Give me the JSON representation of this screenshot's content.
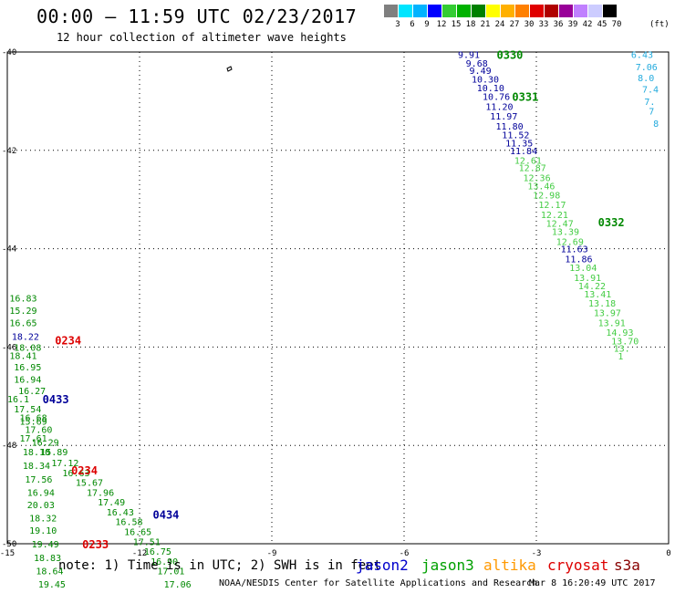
{
  "header": {
    "title": "00:00 – 11:59 UTC 02/23/2017",
    "subtitle": "12 hour collection of altimeter wave heights"
  },
  "legend": {
    "swatches": [
      "#7f7f7f",
      "#00e5ff",
      "#00b3ff",
      "#0000ff",
      "#33cc33",
      "#00b200",
      "#008000",
      "#ffff00",
      "#ffb000",
      "#ff7f00",
      "#e00000",
      "#b00000",
      "#990099",
      "#c080ff",
      "#ccccff",
      "#000000"
    ],
    "labels": [
      "3",
      "6",
      "9",
      "12",
      "15",
      "18",
      "21",
      "24",
      "27",
      "30",
      "33",
      "36",
      "39",
      "42",
      "45",
      "70"
    ],
    "unit": "(ft)"
  },
  "axes": {
    "x_ticks": [
      "-15",
      "-12",
      "-9",
      "-6",
      "-3",
      "0"
    ],
    "y_ticks": [
      "-40",
      "-42",
      "-44",
      "-46",
      "-48",
      "-50"
    ]
  },
  "footer": {
    "note": "note: 1) Time is in UTC; 2) SWH is in feet",
    "satellites": [
      {
        "name": "jason2",
        "color": "#0000cc"
      },
      {
        "name": "jason3",
        "color": "#00a000"
      },
      {
        "name": "altika",
        "color": "#ff9900"
      },
      {
        "name": "cryosat",
        "color": "#dd0000"
      },
      {
        "name": "s3a",
        "color": "#880000"
      }
    ],
    "credit": "NOAA/NESDIS Center for Satellite Applications and Research",
    "timestamp": "Mar  8 16:20:49 UTC 2017"
  },
  "map_data": {
    "extent": {
      "lon": [
        -15,
        0
      ],
      "lat": [
        -50,
        -40
      ]
    },
    "colors": {
      "jason2": "#000099",
      "jason3": "#008800",
      "light": "#44cc44",
      "cryosat": "#dd0000",
      "cyan": "#22aadd"
    },
    "time_labels": [
      {
        "text": "0330",
        "lon": -3.9,
        "lat": -40.05,
        "sat": "jason3"
      },
      {
        "text": "0331",
        "lon": -3.55,
        "lat": -40.9,
        "sat": "jason3"
      },
      {
        "text": "0332",
        "lon": -1.6,
        "lat": -43.45,
        "sat": "jason3"
      },
      {
        "text": "0234",
        "lon": -13.92,
        "lat": -45.85,
        "sat": "cryosat"
      },
      {
        "text": "0433",
        "lon": -14.2,
        "lat": -47.05,
        "sat": "jason2"
      },
      {
        "text": "0234",
        "lon": -13.55,
        "lat": -48.5,
        "sat": "cryosat"
      },
      {
        "text": "0434",
        "lon": -11.7,
        "lat": -49.4,
        "sat": "jason2"
      },
      {
        "text": "0233",
        "lon": -13.3,
        "lat": -50.0,
        "sat": "cryosat"
      }
    ],
    "track_0330": [
      {
        "v": "9.91",
        "lon": -4.78,
        "lat": -40.05,
        "c": "jason2"
      },
      {
        "v": "9.68",
        "lon": -4.6,
        "lat": -40.22,
        "c": "jason2"
      },
      {
        "v": "9.49",
        "lon": -4.52,
        "lat": -40.37,
        "c": "jason2"
      },
      {
        "v": "10.30",
        "lon": -4.47,
        "lat": -40.55,
        "c": "jason2"
      },
      {
        "v": "10.10",
        "lon": -4.35,
        "lat": -40.72,
        "c": "jason2"
      },
      {
        "v": "10.76",
        "lon": -4.22,
        "lat": -40.9,
        "c": "jason2"
      },
      {
        "v": "11.20",
        "lon": -4.15,
        "lat": -41.1,
        "c": "jason2"
      },
      {
        "v": "11.97",
        "lon": -4.05,
        "lat": -41.3,
        "c": "jason2"
      },
      {
        "v": "11.80",
        "lon": -3.92,
        "lat": -41.5,
        "c": "jason2"
      },
      {
        "v": "11.52",
        "lon": -3.78,
        "lat": -41.68,
        "c": "jason2"
      },
      {
        "v": "11.35",
        "lon": -3.7,
        "lat": -41.85,
        "c": "jason2"
      },
      {
        "v": "11.84",
        "lon": -3.6,
        "lat": -42.0,
        "c": "jason2"
      },
      {
        "v": "12.61",
        "lon": -3.5,
        "lat": -42.2,
        "c": "light"
      },
      {
        "v": "12.87",
        "lon": -3.4,
        "lat": -42.35,
        "c": "light"
      },
      {
        "v": "12.36",
        "lon": -3.3,
        "lat": -42.55,
        "c": "light"
      },
      {
        "v": "13.46",
        "lon": -3.2,
        "lat": -42.72,
        "c": "light"
      },
      {
        "v": "12.98",
        "lon": -3.08,
        "lat": -42.9,
        "c": "light"
      },
      {
        "v": "12.17",
        "lon": -2.95,
        "lat": -43.1,
        "c": "light"
      },
      {
        "v": "12.21",
        "lon": -2.9,
        "lat": -43.3,
        "c": "light"
      },
      {
        "v": "12.47",
        "lon": -2.78,
        "lat": -43.48,
        "c": "light"
      },
      {
        "v": "13.39",
        "lon": -2.65,
        "lat": -43.65,
        "c": "light"
      },
      {
        "v": "12.69",
        "lon": -2.55,
        "lat": -43.85,
        "c": "light"
      },
      {
        "v": "11.63",
        "lon": -2.45,
        "lat": -44.0,
        "c": "jason2"
      },
      {
        "v": "11.86",
        "lon": -2.35,
        "lat": -44.2,
        "c": "jason2"
      },
      {
        "v": "13.04",
        "lon": -2.25,
        "lat": -44.38,
        "c": "light"
      },
      {
        "v": "13.91",
        "lon": -2.15,
        "lat": -44.58,
        "c": "light"
      },
      {
        "v": "14.22",
        "lon": -2.05,
        "lat": -44.75,
        "c": "light"
      },
      {
        "v": "13.41",
        "lon": -1.92,
        "lat": -44.92,
        "c": "light"
      },
      {
        "v": "13.18",
        "lon": -1.82,
        "lat": -45.1,
        "c": "light"
      },
      {
        "v": "13.97",
        "lon": -1.7,
        "lat": -45.3,
        "c": "light"
      },
      {
        "v": "13.91",
        "lon": -1.6,
        "lat": -45.5,
        "c": "light"
      },
      {
        "v": "14.93",
        "lon": -1.42,
        "lat": -45.7,
        "c": "light"
      },
      {
        "v": "13.70",
        "lon": -1.3,
        "lat": -45.87,
        "c": "light"
      },
      {
        "v": "13.",
        "lon": -1.25,
        "lat": -46.02,
        "c": "light"
      },
      {
        "v": "1",
        "lon": -1.15,
        "lat": -46.18,
        "c": "light"
      }
    ],
    "track_east": [
      {
        "v": "6.43",
        "lon": -0.85,
        "lat": -40.05,
        "c": "cyan"
      },
      {
        "v": "7.06",
        "lon": -0.75,
        "lat": -40.3,
        "c": "cyan"
      },
      {
        "v": "8.0",
        "lon": -0.7,
        "lat": -40.52,
        "c": "cyan"
      },
      {
        "v": "7.4",
        "lon": -0.6,
        "lat": -40.75,
        "c": "cyan"
      },
      {
        "v": "7.",
        "lon": -0.55,
        "lat": -41.0,
        "c": "cyan"
      },
      {
        "v": "7",
        "lon": -0.45,
        "lat": -41.2,
        "c": "cyan"
      },
      {
        "v": "8",
        "lon": -0.35,
        "lat": -41.45,
        "c": "cyan"
      }
    ],
    "track_west": [
      {
        "v": "16.83",
        "lon": -14.95,
        "lat": -45.0,
        "c": "jason3"
      },
      {
        "v": "15.29",
        "lon": -14.95,
        "lat": -45.25,
        "c": "jason3"
      },
      {
        "v": "16.65",
        "lon": -14.95,
        "lat": -45.5,
        "c": "jason3"
      },
      {
        "v": "18.22",
        "lon": -14.9,
        "lat": -45.78,
        "c": "jason2"
      },
      {
        "v": "18.08",
        "lon": -14.85,
        "lat": -46.0,
        "c": "jason3"
      },
      {
        "v": "18.41",
        "lon": -14.95,
        "lat": -46.17,
        "c": "jason3"
      },
      {
        "v": "16.95",
        "lon": -14.85,
        "lat": -46.4,
        "c": "jason3"
      },
      {
        "v": "16.94",
        "lon": -14.85,
        "lat": -46.65,
        "c": "jason3"
      },
      {
        "v": "16.27",
        "lon": -14.75,
        "lat": -46.88,
        "c": "jason3"
      },
      {
        "v": "16.1",
        "lon": -15.0,
        "lat": -47.05,
        "c": "jason3"
      },
      {
        "v": "17.54",
        "lon": -14.85,
        "lat": -47.25,
        "c": "jason3"
      },
      {
        "v": "16.68",
        "lon": -14.72,
        "lat": -47.43,
        "c": "jason3"
      },
      {
        "v": "15.69",
        "lon": -14.72,
        "lat": -47.5,
        "c": "jason3"
      },
      {
        "v": "17.60",
        "lon": -14.6,
        "lat": -47.67,
        "c": "jason3"
      },
      {
        "v": "17.61",
        "lon": -14.72,
        "lat": -47.85,
        "c": "jason3"
      },
      {
        "v": "16.29",
        "lon": -14.45,
        "lat": -47.93,
        "c": "jason3"
      },
      {
        "v": "18.10",
        "lon": -14.65,
        "lat": -48.13,
        "c": "jason3"
      },
      {
        "v": "15.89",
        "lon": -14.25,
        "lat": -48.13,
        "c": "jason3"
      },
      {
        "v": "18.34",
        "lon": -14.65,
        "lat": -48.4,
        "c": "jason3"
      },
      {
        "v": "17.12",
        "lon": -14.0,
        "lat": -48.35,
        "c": "jason3"
      },
      {
        "v": "16.63",
        "lon": -13.75,
        "lat": -48.55,
        "c": "jason3"
      },
      {
        "v": "17.56",
        "lon": -14.6,
        "lat": -48.68,
        "c": "jason3"
      },
      {
        "v": "15.67",
        "lon": -13.45,
        "lat": -48.75,
        "c": "jason3"
      },
      {
        "v": "16.94",
        "lon": -14.55,
        "lat": -48.95,
        "c": "jason3"
      },
      {
        "v": "17.96",
        "lon": -13.2,
        "lat": -48.95,
        "c": "jason3"
      },
      {
        "v": "17.49",
        "lon": -12.95,
        "lat": -49.15,
        "c": "jason3"
      },
      {
        "v": "20.03",
        "lon": -14.55,
        "lat": -49.2,
        "c": "jason3"
      },
      {
        "v": "16.43",
        "lon": -12.75,
        "lat": -49.35,
        "c": "jason3"
      },
      {
        "v": "18.32",
        "lon": -14.5,
        "lat": -49.47,
        "c": "jason3"
      },
      {
        "v": "16.58",
        "lon": -12.55,
        "lat": -49.55,
        "c": "jason3"
      },
      {
        "v": "19.10",
        "lon": -14.5,
        "lat": -49.72,
        "c": "jason3"
      },
      {
        "v": "16.65",
        "lon": -12.35,
        "lat": -49.75,
        "c": "jason3"
      },
      {
        "v": "17.51",
        "lon": -12.15,
        "lat": -49.95,
        "c": "jason3"
      },
      {
        "v": "19.49",
        "lon": -14.45,
        "lat": -50.0,
        "c": "jason3"
      },
      {
        "v": "16.75",
        "lon": -11.9,
        "lat": -50.15,
        "c": "jason3"
      },
      {
        "v": "18.83",
        "lon": -14.4,
        "lat": -50.28,
        "c": "jason3"
      },
      {
        "v": "16.90",
        "lon": -11.75,
        "lat": -50.35,
        "c": "jason3"
      },
      {
        "v": "18.64",
        "lon": -14.35,
        "lat": -50.55,
        "c": "jason3"
      },
      {
        "v": "17.01",
        "lon": -11.6,
        "lat": -50.55,
        "c": "jason3"
      },
      {
        "v": "19.45",
        "lon": -14.3,
        "lat": -50.82,
        "c": "jason3"
      },
      {
        "v": "17.06",
        "lon": -11.45,
        "lat": -50.82,
        "c": "jason3"
      }
    ]
  }
}
